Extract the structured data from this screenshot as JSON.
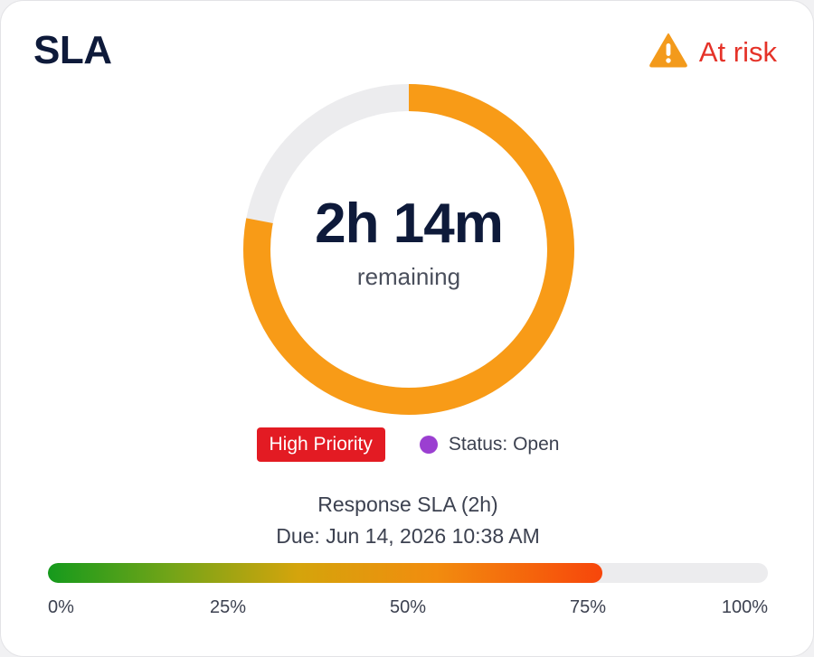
{
  "card": {
    "title": "SLA",
    "risk": {
      "label": "At risk",
      "icon": "warning-triangle-icon",
      "icon_color": "#f39a1b",
      "label_color": "#e53228"
    }
  },
  "timer": {
    "value": "2h 14m",
    "sublabel": "remaining",
    "remaining_fraction": 0.78,
    "ring_color": "#f89b17",
    "track_color": "#ececee"
  },
  "badges": {
    "priority": "High Priority",
    "status": "Status: Open",
    "priority_color": "#e31b23",
    "status_dot_color": "#9b3fd1"
  },
  "sla": {
    "name": "Response SLA (2h)",
    "due": "Due: Jun 14, 2026 10:38 AM"
  },
  "progress": {
    "percent": 77,
    "ticks": [
      "0%",
      "25%",
      "50%",
      "75%",
      "100%"
    ]
  }
}
